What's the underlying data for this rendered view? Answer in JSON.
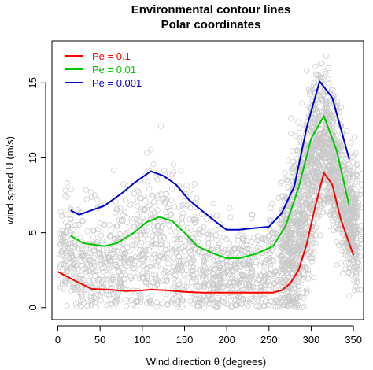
{
  "chart_data": {
    "type": "scatter",
    "title": "Environmental contour lines",
    "subtitle": "Polar coordinates",
    "xlabel": "Wind direction  θ  (degrees)",
    "ylabel": "wind speed U (m/s)",
    "xlim": [
      -7,
      362
    ],
    "ylim": [
      -0.8,
      17.8
    ],
    "xticks": [
      0,
      50,
      100,
      150,
      200,
      250,
      300,
      350
    ],
    "yticks": [
      0,
      5,
      10,
      15
    ],
    "grid": false,
    "legend_position": "top-left",
    "scatter_color": "#c8c8c8",
    "series": [
      {
        "name": "Pe = 0.1",
        "color": "#ff0000",
        "x": [
          0,
          20,
          40,
          60,
          80,
          100,
          110,
          130,
          150,
          170,
          190,
          210,
          230,
          255,
          265,
          275,
          285,
          295,
          305,
          315,
          325,
          335,
          350
        ],
        "y": [
          2.4,
          1.8,
          1.25,
          1.2,
          1.1,
          1.15,
          1.2,
          1.15,
          1.05,
          1.0,
          1.0,
          1.0,
          1.0,
          1.0,
          1.15,
          1.6,
          2.5,
          4.3,
          6.8,
          9.0,
          8.2,
          5.9,
          3.5
        ]
      },
      {
        "name": "Pe = 0.01",
        "color": "#00c800",
        "x": [
          15,
          30,
          55,
          70,
          90,
          105,
          120,
          135,
          150,
          165,
          185,
          200,
          215,
          235,
          255,
          270,
          285,
          300,
          315,
          330,
          345
        ],
        "y": [
          4.8,
          4.3,
          4.1,
          4.3,
          5.0,
          5.7,
          6.05,
          5.8,
          5.0,
          4.1,
          3.6,
          3.3,
          3.3,
          3.6,
          4.1,
          5.5,
          8.0,
          11.3,
          12.8,
          10.5,
          6.8
        ]
      },
      {
        "name": "Pe = 0.001",
        "color": "#0000d0",
        "x": [
          15,
          25,
          55,
          75,
          90,
          110,
          125,
          140,
          155,
          170,
          190,
          200,
          215,
          230,
          250,
          265,
          280,
          295,
          310,
          325,
          345
        ],
        "y": [
          6.5,
          6.2,
          6.8,
          7.6,
          8.3,
          9.1,
          8.8,
          8.2,
          7.2,
          6.5,
          5.6,
          5.2,
          5.2,
          5.3,
          5.4,
          6.3,
          8.1,
          12.1,
          15.1,
          14.0,
          9.9
        ]
      }
    ]
  }
}
